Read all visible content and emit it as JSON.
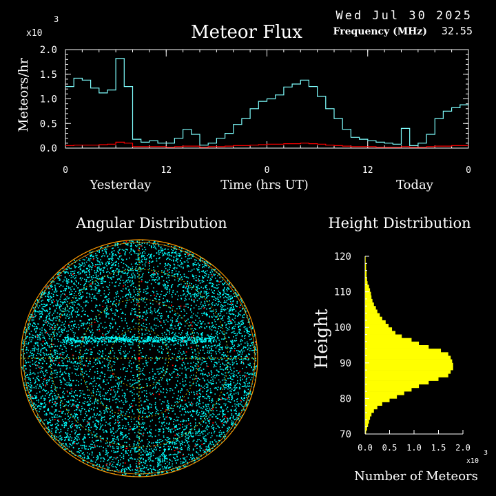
{
  "header": {
    "date": "Wed Jul 30 2025",
    "frequency_label": "Frequency (MHz)",
    "frequency_value": "32.55"
  },
  "colors": {
    "background": "#000000",
    "axis": "#ffffff",
    "meteor_line": "#7fffff",
    "red_line": "#ff0000",
    "scatter_cyan": "#00ffff",
    "grid_orange": "#ff9900",
    "grid_yellow": "#ffff00",
    "histogram": "#ffff00"
  },
  "chart_data": [
    {
      "type": "line",
      "title": "Meteor Flux",
      "ylabel": "Meteors/hr",
      "xlabel": "Time (hrs UT)",
      "y_multiplier": "x10",
      "y_multiplier_exp": "3",
      "ylim": [
        0,
        2.0
      ],
      "yticks": [
        "0.0",
        "0.5",
        "1.0",
        "1.5",
        "2.0"
      ],
      "xlim": [
        0,
        48
      ],
      "xticks": [
        "0",
        "12",
        "0",
        "12",
        "0"
      ],
      "day_labels": [
        "Yesterday",
        "Today"
      ],
      "series": [
        {
          "color": "cyan",
          "values": [
            1.25,
            1.42,
            1.38,
            1.22,
            1.12,
            1.18,
            1.82,
            1.25,
            0.18,
            0.12,
            0.15,
            0.1,
            0.1,
            0.2,
            0.38,
            0.28,
            0.06,
            0.1,
            0.2,
            0.3,
            0.48,
            0.6,
            0.8,
            0.95,
            1.0,
            1.08,
            1.24,
            1.3,
            1.38,
            1.25,
            1.05,
            0.8,
            0.6,
            0.38,
            0.22,
            0.18,
            0.15,
            0.12,
            0.1,
            0.08,
            0.4,
            0.05,
            0.1,
            0.28,
            0.6,
            0.75,
            0.82,
            0.88
          ]
        },
        {
          "color": "red",
          "values": [
            0.05,
            0.06,
            0.06,
            0.06,
            0.07,
            0.08,
            0.12,
            0.1,
            0.03,
            0.03,
            0.03,
            0.03,
            0.02,
            0.03,
            0.04,
            0.04,
            0.02,
            0.03,
            0.03,
            0.04,
            0.05,
            0.05,
            0.06,
            0.07,
            0.08,
            0.08,
            0.09,
            0.09,
            0.1,
            0.09,
            0.08,
            0.06,
            0.05,
            0.04,
            0.03,
            0.03,
            0.03,
            0.02,
            0.02,
            0.02,
            0.03,
            0.02,
            0.02,
            0.03,
            0.04,
            0.04,
            0.05,
            0.05
          ]
        }
      ]
    },
    {
      "type": "scatter",
      "title": "Angular Distribution"
    },
    {
      "type": "bar",
      "orientation": "horizontal",
      "title": "Height Distribution",
      "ylabel": "Height",
      "xlabel": "Number of Meteors",
      "x_multiplier": "x10",
      "x_multiplier_exp": "3",
      "ylim": [
        70,
        120
      ],
      "yticks": [
        "70",
        "80",
        "90",
        "100",
        "110",
        "120"
      ],
      "xlim": [
        0,
        2.0
      ],
      "xticks": [
        "0.0",
        "0.5",
        "1.0",
        "1.5",
        "2.0"
      ],
      "bin_start": 70,
      "bin_width": 1,
      "values": [
        0.02,
        0.04,
        0.06,
        0.08,
        0.1,
        0.13,
        0.18,
        0.25,
        0.35,
        0.5,
        0.65,
        0.8,
        0.95,
        1.1,
        1.3,
        1.5,
        1.7,
        1.75,
        1.8,
        1.8,
        1.78,
        1.75,
        1.7,
        1.55,
        1.3,
        1.1,
        0.95,
        0.75,
        0.62,
        0.55,
        0.48,
        0.42,
        0.35,
        0.3,
        0.25,
        0.22,
        0.18,
        0.15,
        0.13,
        0.12,
        0.1,
        0.08,
        0.05,
        0.04,
        0.03,
        0.03,
        0.02,
        0.02,
        0.01,
        0.01
      ]
    }
  ]
}
